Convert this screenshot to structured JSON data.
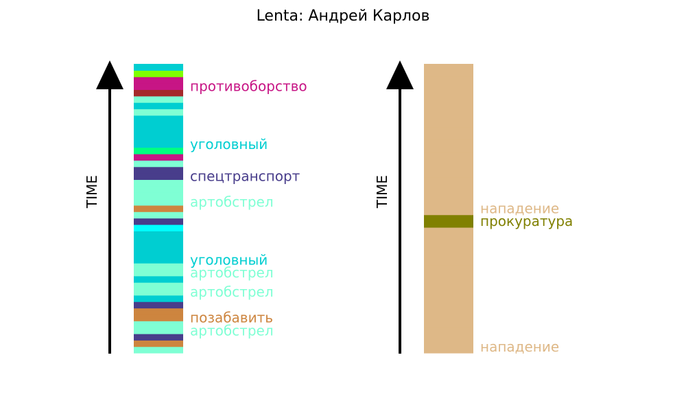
{
  "chart_data": {
    "type": "timeline-strip",
    "title": "Lenta: Андрей Карлов",
    "panels": [
      {
        "axis_label": "TIME",
        "segments": [
          {
            "color": "#7FFFD4"
          },
          {
            "color": "#CD853F"
          },
          {
            "color": "#483D8B"
          },
          {
            "color": "#7FFFD4",
            "label": "артобстрел"
          },
          {
            "color": "#7FFFD4"
          },
          {
            "color": "#CD853F",
            "label": "позабавить"
          },
          {
            "color": "#CD853F"
          },
          {
            "color": "#483D8B"
          },
          {
            "color": "#00CED1"
          },
          {
            "color": "#7FFFD4",
            "label": "артобстрел"
          },
          {
            "color": "#7FFFD4"
          },
          {
            "color": "#00CED1"
          },
          {
            "color": "#7FFFD4",
            "label": "артобстрел"
          },
          {
            "color": "#7FFFD4"
          },
          {
            "color": "#00CED1",
            "label": "уголовный"
          },
          {
            "color": "#00CED1"
          },
          {
            "color": "#00CED1"
          },
          {
            "color": "#00CED1"
          },
          {
            "color": "#00CED1"
          },
          {
            "color": "#00FFFF"
          },
          {
            "color": "#483D8B"
          },
          {
            "color": "#7FFFD4"
          },
          {
            "color": "#CD853F"
          },
          {
            "color": "#7FFFD4",
            "label": "артобстрел"
          },
          {
            "color": "#7FFFD4"
          },
          {
            "color": "#7FFFD4"
          },
          {
            "color": "#7FFFD4"
          },
          {
            "color": "#483D8B",
            "label": "спецтранспорт"
          },
          {
            "color": "#483D8B"
          },
          {
            "color": "#7FFFD4"
          },
          {
            "color": "#C71585"
          },
          {
            "color": "#00FF7F"
          },
          {
            "color": "#00CED1",
            "label": "уголовный"
          },
          {
            "color": "#00CED1"
          },
          {
            "color": "#00CED1"
          },
          {
            "color": "#00CED1"
          },
          {
            "color": "#00CED1"
          },
          {
            "color": "#7FFFD4"
          },
          {
            "color": "#00CED1"
          },
          {
            "color": "#7FFFD4"
          },
          {
            "color": "#A52A2A"
          },
          {
            "color": "#C71585",
            "label": "противоборство"
          },
          {
            "color": "#C71585"
          },
          {
            "color": "#7FFF00"
          },
          {
            "color": "#00CED1"
          }
        ]
      },
      {
        "axis_label": "TIME",
        "segments": [
          {
            "color": "#DEB887",
            "label": "нападение"
          },
          {
            "color": "#DEB887"
          },
          {
            "color": "#DEB887"
          },
          {
            "color": "#DEB887"
          },
          {
            "color": "#DEB887"
          },
          {
            "color": "#DEB887"
          },
          {
            "color": "#DEB887"
          },
          {
            "color": "#DEB887"
          },
          {
            "color": "#DEB887"
          },
          {
            "color": "#DEB887"
          },
          {
            "color": "#808000",
            "label": "прокуратура"
          },
          {
            "color": "#DEB887",
            "label": "нападение"
          },
          {
            "color": "#DEB887"
          },
          {
            "color": "#DEB887"
          },
          {
            "color": "#DEB887"
          },
          {
            "color": "#DEB887"
          },
          {
            "color": "#DEB887"
          },
          {
            "color": "#DEB887"
          },
          {
            "color": "#DEB887"
          },
          {
            "color": "#DEB887"
          },
          {
            "color": "#DEB887"
          },
          {
            "color": "#DEB887"
          },
          {
            "color": "#DEB887"
          }
        ]
      }
    ]
  }
}
